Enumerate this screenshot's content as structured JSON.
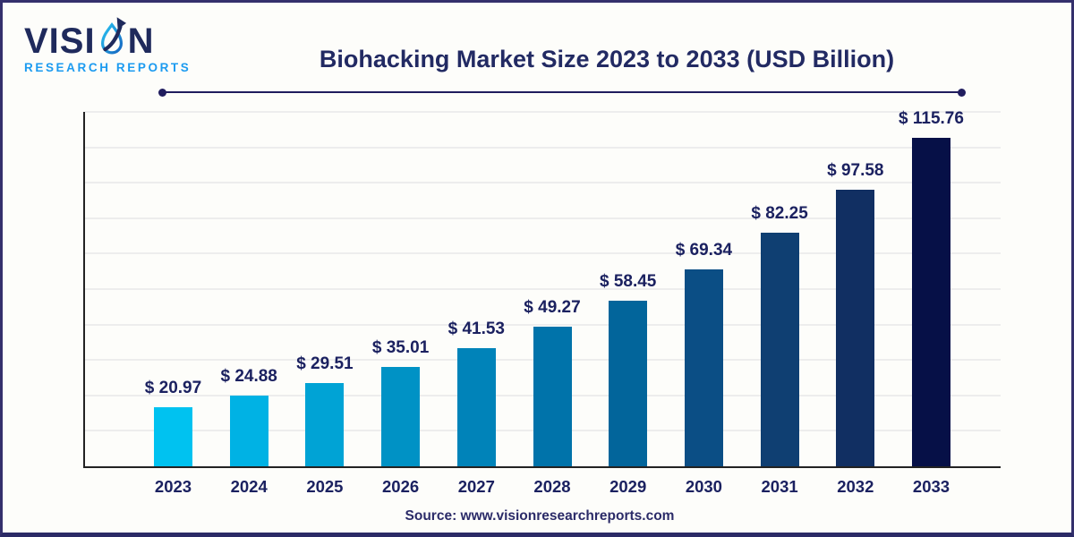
{
  "page": {
    "background": "#FDFDFA",
    "border_color": "#34306C"
  },
  "logo": {
    "brand_top": "VISION",
    "brand_top_pre": "VISI",
    "brand_top_post": "N",
    "brand_bottom": "RESEARCH REPORTS",
    "icon": "leaf-droplet-arrow-icon",
    "colors": {
      "navy": "#1F2A5C",
      "blue": "#1C9BF0",
      "cyan": "#29A8E2"
    }
  },
  "header": {
    "title": "Biohacking Market Size 2023 to 2033 (USD Billion)",
    "title_color": "#222A63",
    "divider_color": "#201D5E"
  },
  "chart_data": {
    "type": "bar",
    "title": "Biohacking Market Size 2023 to 2033 (USD Billion)",
    "categories": [
      "2023",
      "2024",
      "2025",
      "2026",
      "2027",
      "2028",
      "2029",
      "2030",
      "2031",
      "2032",
      "2033"
    ],
    "values": [
      20.97,
      24.88,
      29.51,
      35.01,
      41.53,
      49.27,
      58.45,
      69.34,
      82.25,
      97.58,
      115.76
    ],
    "value_labels": [
      "$ 20.97",
      "$ 24.88",
      "$ 29.51",
      "$ 35.01",
      "$ 41.53",
      "$ 49.27",
      "$ 58.45",
      "$ 69.34",
      "$ 82.25",
      "$ 97.58",
      "$ 115.76"
    ],
    "bar_colors": [
      "#00C2F0",
      "#00B2E4",
      "#00A3D5",
      "#0092C5",
      "#0083B9",
      "#0073AA",
      "#02659B",
      "#0B4E85",
      "#0F3F72",
      "#112F62",
      "#061047"
    ],
    "unit": "USD Billion",
    "xlabel": "",
    "ylabel": "",
    "ylim": [
      0,
      125
    ],
    "gridline_interval": 12.5,
    "grid": "horizontal",
    "y_tick_labels_visible": false,
    "legend": "none",
    "label_color": "#1B2160",
    "axis_color": "#222222",
    "gridline_color": "#EDEDED"
  },
  "footer": {
    "source_text": "Source: www.visionresearchreports.com",
    "color": "#2B2B68"
  }
}
